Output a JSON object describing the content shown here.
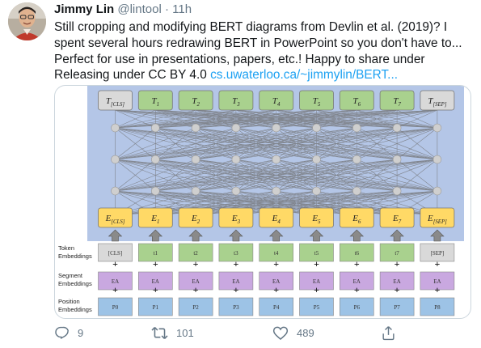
{
  "tweet": {
    "author_name": "Jimmy Lin",
    "handle": "@lintool",
    "separator": "·",
    "time": "11h",
    "text": "Still cropping and modifying BERT diagrams from Devlin et al. (2019)? I spent several hours redrawing BERT in PowerPoint so you don't have to... Perfect for use in presentations, papers, etc.! Happy to share under Releasing under CC BY 4.0 ",
    "link_text": "cs.uwaterloo.ca/~jimmylin/BERT..."
  },
  "diagram": {
    "output_labels": [
      {
        "main": "T",
        "sub": "[CLS]"
      },
      {
        "main": "T",
        "sub": "1"
      },
      {
        "main": "T",
        "sub": "2"
      },
      {
        "main": "T",
        "sub": "3"
      },
      {
        "main": "T",
        "sub": "4"
      },
      {
        "main": "T",
        "sub": "5"
      },
      {
        "main": "T",
        "sub": "6"
      },
      {
        "main": "T",
        "sub": "7"
      },
      {
        "main": "T",
        "sub": "[SEP]"
      }
    ],
    "input_labels": [
      {
        "main": "E",
        "sub": "[CLS]"
      },
      {
        "main": "E",
        "sub": "1"
      },
      {
        "main": "E",
        "sub": "2"
      },
      {
        "main": "E",
        "sub": "3"
      },
      {
        "main": "E",
        "sub": "4"
      },
      {
        "main": "E",
        "sub": "5"
      },
      {
        "main": "E",
        "sub": "6"
      },
      {
        "main": "E",
        "sub": "7"
      },
      {
        "main": "E",
        "sub": "[SEP]"
      }
    ],
    "token_labels": [
      "[CLS]",
      "t1",
      "t2",
      "t3",
      "t4",
      "t5",
      "t6",
      "t7",
      "[SEP]"
    ],
    "segment_labels": [
      "EA",
      "EA",
      "EA",
      "EA",
      "EA",
      "EA",
      "EA",
      "EA",
      "EA"
    ],
    "position_labels": [
      "P0",
      "P1",
      "P2",
      "P3",
      "P4",
      "P5",
      "P6",
      "P7",
      "P8"
    ],
    "plus_sign": "+",
    "row_labels": {
      "token": [
        "Token",
        "Embeddings"
      ],
      "segment": [
        "Segment",
        "Embeddings"
      ],
      "position": [
        "Position",
        "Embeddings"
      ]
    },
    "colors": {
      "panel": "#b4c6e7",
      "output_special": "#d9d9d9",
      "output_token": "#a9d18e",
      "input": "#ffd966",
      "token_embed": "#a9d18e",
      "segment_embed": "#c9a8e0",
      "position_embed": "#9dc3e6",
      "node": "#cfcfcf",
      "line": "#6f6f6f"
    }
  },
  "actions": {
    "reply_count": "9",
    "retweet_count": "101",
    "like_count": "489"
  }
}
